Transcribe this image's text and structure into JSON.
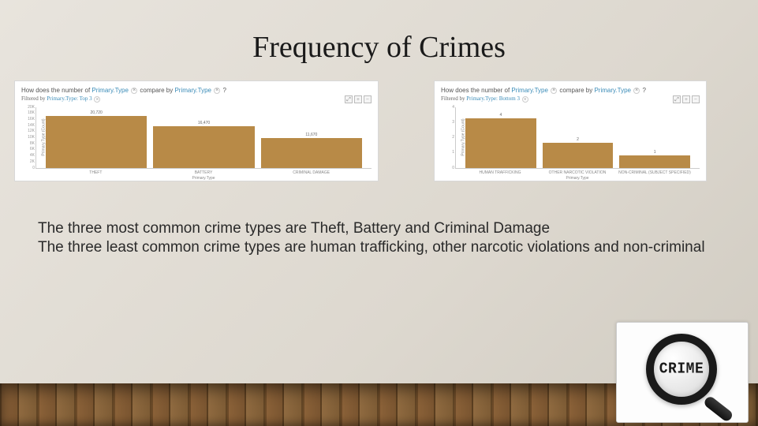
{
  "title": "Frequency of Crimes",
  "chart_left": {
    "type": "bar",
    "question_prefix": "How does the number of",
    "link1": "Primary.Type",
    "question_mid": "compare by",
    "link2": "Primary.Type",
    "question_suffix": "?",
    "filter_prefix": "Filtered by",
    "filter_link": "Primary.Type: Top 3",
    "y_axis_label": "Primary.Type (Count)",
    "x_axis_label": "Primary.Type",
    "ymax": 22000,
    "categories": [
      "THEFT",
      "BATTERY",
      "CRIMINAL DAMAGE"
    ],
    "values": [
      20720,
      16470,
      11670
    ],
    "value_labels": [
      "20,720",
      "16,470",
      "11,670"
    ],
    "bar_color": "#b88a47",
    "y_ticks": [
      "20K",
      "18K",
      "16K",
      "14K",
      "12K",
      "10K",
      "8K",
      "6K",
      "4K",
      "2K",
      "0"
    ]
  },
  "chart_right": {
    "type": "bar",
    "question_prefix": "How does the number of",
    "link1": "Primary.Type",
    "question_mid": "compare by",
    "link2": "Primary.Type",
    "question_suffix": "?",
    "filter_prefix": "Filtered by",
    "filter_link": "Primary.Type: Bottom 3",
    "y_axis_label": "Primary.Type (Count)",
    "x_axis_label": "Primary.Type",
    "ymax": 4.5,
    "categories": [
      "HUMAN TRAFFICKING",
      "OTHER NARCOTIC VIOLATION",
      "NON-CRIMINAL (SUBJECT SPECIFIED)"
    ],
    "values": [
      4,
      2,
      1
    ],
    "value_labels": [
      "4",
      "2",
      "1"
    ],
    "bar_color": "#b88a47",
    "y_ticks": [
      "4",
      "3",
      "2",
      "1",
      "0"
    ]
  },
  "body_line1": "The three most common crime types are Theft, Battery and Criminal Damage",
  "body_line2": "The three least common crime types are human trafficking, other narcotic violations and non-criminal",
  "crime_badge_text": "CRIME",
  "controls": {
    "expand": "⤢",
    "plus": "+",
    "minus": "−"
  }
}
